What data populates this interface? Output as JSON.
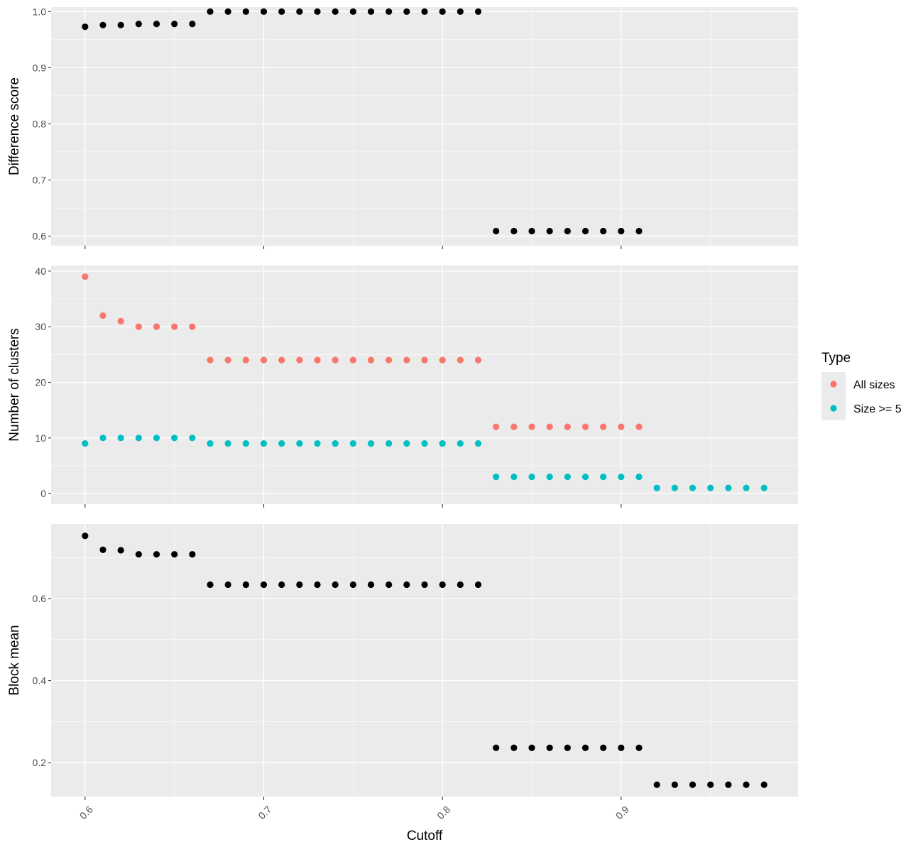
{
  "chart_data": {
    "type": "scatter",
    "shared_x": {
      "label": "Cutoff",
      "ticks": [
        0.6,
        0.7,
        0.8,
        0.9
      ],
      "tick_labels": [
        "0.6",
        "0.7",
        "0.8",
        "0.9"
      ],
      "range": [
        0.581,
        0.999
      ],
      "tick_label_rotation": -45
    },
    "legend": {
      "title": "Type",
      "placement": "right",
      "entries": [
        {
          "label": "All sizes",
          "color": "#F8766D"
        },
        {
          "label": "Size >= 5",
          "color": "#00BFC4"
        }
      ]
    },
    "panels": [
      {
        "ylabel": "Difference score",
        "ylim": [
          0.583,
          1.008
        ],
        "yticks": [
          0.6,
          0.7,
          0.8,
          0.9,
          1.0
        ],
        "ytick_labels": [
          "0.6",
          "0.7",
          "0.8",
          "0.9",
          "1.0"
        ],
        "show_x_ticks": true,
        "show_x_labels": false,
        "series": [
          {
            "color": "#000000",
            "points": [
              [
                0.6,
                0.973
              ],
              [
                0.61,
                0.976
              ],
              [
                0.62,
                0.976
              ],
              [
                0.63,
                0.978
              ],
              [
                0.64,
                0.978
              ],
              [
                0.65,
                0.978
              ],
              [
                0.66,
                0.978
              ],
              [
                0.67,
                1.0
              ],
              [
                0.68,
                1.0
              ],
              [
                0.69,
                1.0
              ],
              [
                0.7,
                1.0
              ],
              [
                0.71,
                1.0
              ],
              [
                0.72,
                1.0
              ],
              [
                0.73,
                1.0
              ],
              [
                0.74,
                1.0
              ],
              [
                0.75,
                1.0
              ],
              [
                0.76,
                1.0
              ],
              [
                0.77,
                1.0
              ],
              [
                0.78,
                1.0
              ],
              [
                0.79,
                1.0
              ],
              [
                0.8,
                1.0
              ],
              [
                0.81,
                1.0
              ],
              [
                0.82,
                1.0
              ],
              [
                0.83,
                0.609
              ],
              [
                0.84,
                0.609
              ],
              [
                0.85,
                0.609
              ],
              [
                0.86,
                0.609
              ],
              [
                0.87,
                0.609
              ],
              [
                0.88,
                0.609
              ],
              [
                0.89,
                0.609
              ],
              [
                0.9,
                0.609
              ],
              [
                0.91,
                0.609
              ]
            ]
          }
        ]
      },
      {
        "ylabel": "Number of clusters",
        "ylim": [
          -1.9,
          41.0
        ],
        "yticks": [
          0,
          10,
          20,
          30,
          40
        ],
        "ytick_labels": [
          "0",
          "10",
          "20",
          "30",
          "40"
        ],
        "show_x_ticks": true,
        "show_x_labels": false,
        "series": [
          {
            "name": "All sizes",
            "color": "#F8766D",
            "points": [
              [
                0.6,
                39
              ],
              [
                0.61,
                32
              ],
              [
                0.62,
                31
              ],
              [
                0.63,
                30
              ],
              [
                0.64,
                30
              ],
              [
                0.65,
                30
              ],
              [
                0.66,
                30
              ],
              [
                0.67,
                24
              ],
              [
                0.68,
                24
              ],
              [
                0.69,
                24
              ],
              [
                0.7,
                24
              ],
              [
                0.71,
                24
              ],
              [
                0.72,
                24
              ],
              [
                0.73,
                24
              ],
              [
                0.74,
                24
              ],
              [
                0.75,
                24
              ],
              [
                0.76,
                24
              ],
              [
                0.77,
                24
              ],
              [
                0.78,
                24
              ],
              [
                0.79,
                24
              ],
              [
                0.8,
                24
              ],
              [
                0.81,
                24
              ],
              [
                0.82,
                24
              ],
              [
                0.83,
                12
              ],
              [
                0.84,
                12
              ],
              [
                0.85,
                12
              ],
              [
                0.86,
                12
              ],
              [
                0.87,
                12
              ],
              [
                0.88,
                12
              ],
              [
                0.89,
                12
              ],
              [
                0.9,
                12
              ],
              [
                0.91,
                12
              ]
            ]
          },
          {
            "name": "Size >= 5",
            "color": "#00BFC4",
            "points": [
              [
                0.6,
                9
              ],
              [
                0.61,
                10
              ],
              [
                0.62,
                10
              ],
              [
                0.63,
                10
              ],
              [
                0.64,
                10
              ],
              [
                0.65,
                10
              ],
              [
                0.66,
                10
              ],
              [
                0.67,
                9
              ],
              [
                0.68,
                9
              ],
              [
                0.69,
                9
              ],
              [
                0.7,
                9
              ],
              [
                0.71,
                9
              ],
              [
                0.72,
                9
              ],
              [
                0.73,
                9
              ],
              [
                0.74,
                9
              ],
              [
                0.75,
                9
              ],
              [
                0.76,
                9
              ],
              [
                0.77,
                9
              ],
              [
                0.78,
                9
              ],
              [
                0.79,
                9
              ],
              [
                0.8,
                9
              ],
              [
                0.81,
                9
              ],
              [
                0.82,
                9
              ],
              [
                0.83,
                3
              ],
              [
                0.84,
                3
              ],
              [
                0.85,
                3
              ],
              [
                0.86,
                3
              ],
              [
                0.87,
                3
              ],
              [
                0.88,
                3
              ],
              [
                0.89,
                3
              ],
              [
                0.9,
                3
              ],
              [
                0.91,
                3
              ],
              [
                0.92,
                1
              ],
              [
                0.93,
                1
              ],
              [
                0.94,
                1
              ],
              [
                0.95,
                1
              ],
              [
                0.96,
                1
              ],
              [
                0.97,
                1
              ],
              [
                0.98,
                1
              ]
            ]
          }
        ]
      },
      {
        "ylabel": "Block mean",
        "ylim": [
          0.117,
          0.782
        ],
        "yticks": [
          0.2,
          0.4,
          0.6
        ],
        "ytick_labels": [
          "0.2",
          "0.4",
          "0.6"
        ],
        "show_x_ticks": true,
        "show_x_labels": true,
        "series": [
          {
            "color": "#000000",
            "points": [
              [
                0.6,
                0.753
              ],
              [
                0.61,
                0.719
              ],
              [
                0.62,
                0.718
              ],
              [
                0.63,
                0.708
              ],
              [
                0.64,
                0.708
              ],
              [
                0.65,
                0.708
              ],
              [
                0.66,
                0.708
              ],
              [
                0.67,
                0.634
              ],
              [
                0.68,
                0.634
              ],
              [
                0.69,
                0.634
              ],
              [
                0.7,
                0.634
              ],
              [
                0.71,
                0.634
              ],
              [
                0.72,
                0.634
              ],
              [
                0.73,
                0.634
              ],
              [
                0.74,
                0.634
              ],
              [
                0.75,
                0.634
              ],
              [
                0.76,
                0.634
              ],
              [
                0.77,
                0.634
              ],
              [
                0.78,
                0.634
              ],
              [
                0.79,
                0.634
              ],
              [
                0.8,
                0.634
              ],
              [
                0.81,
                0.634
              ],
              [
                0.82,
                0.634
              ],
              [
                0.83,
                0.236
              ],
              [
                0.84,
                0.236
              ],
              [
                0.85,
                0.236
              ],
              [
                0.86,
                0.236
              ],
              [
                0.87,
                0.236
              ],
              [
                0.88,
                0.236
              ],
              [
                0.89,
                0.236
              ],
              [
                0.9,
                0.236
              ],
              [
                0.91,
                0.236
              ],
              [
                0.92,
                0.146
              ],
              [
                0.93,
                0.146
              ],
              [
                0.94,
                0.146
              ],
              [
                0.95,
                0.146
              ],
              [
                0.96,
                0.146
              ],
              [
                0.97,
                0.146
              ],
              [
                0.98,
                0.146
              ]
            ]
          }
        ]
      }
    ]
  }
}
